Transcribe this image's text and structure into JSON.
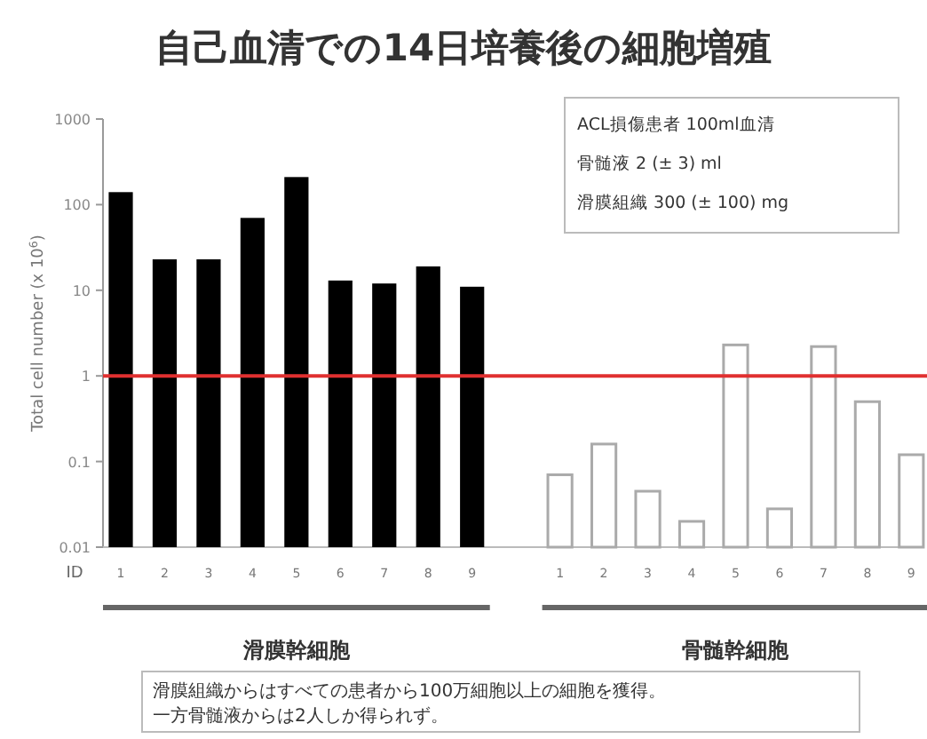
{
  "chart_data": {
    "type": "bar",
    "title": "自己血清での14日培養後の細胞増殖",
    "ylabel": "Total cell number (x 10$^{6}$)",
    "categories": [
      "1",
      "2",
      "3",
      "4",
      "5",
      "6",
      "7",
      "8",
      "9",
      null,
      "1",
      "2",
      "3",
      "4",
      "5",
      "6",
      "7",
      "8",
      "9"
    ],
    "series": [
      {
        "color": "#000000",
        "values": [
          140,
          23,
          23,
          70,
          210,
          13,
          12,
          19,
          11,
          null,
          null,
          null,
          null,
          null,
          null,
          null,
          null,
          null,
          null
        ]
      },
      {
        "color": "#ffffff",
        "values": [
          null,
          null,
          null,
          null,
          null,
          null,
          null,
          null,
          null,
          null,
          0.07,
          0.16,
          0.045,
          0.02,
          2.3,
          0.028,
          2.2,
          0.5,
          0.12
        ]
      }
    ],
    "log": true,
    "ylim": [
      0.01,
      1000
    ],
    "yticks": [
      1000,
      100,
      10,
      1,
      0.1,
      0.01
    ],
    "ref_lines": [
      {
        "axis": "y",
        "value": 1,
        "color": "#e03030"
      }
    ],
    "annotations": [
      "ID",
      "ACL損傷患者 100ml血清",
      "骨髄液 2 (± 3) ml",
      "滑膜組織 300 (± 100) mg",
      "滑膜幹細胞",
      "骨髄幹細胞",
      "滑膜組織からはすべての患者から100万細胞以上の細胞を獲得。",
      "一方骨髄液からは2人しか得られず。"
    ]
  }
}
